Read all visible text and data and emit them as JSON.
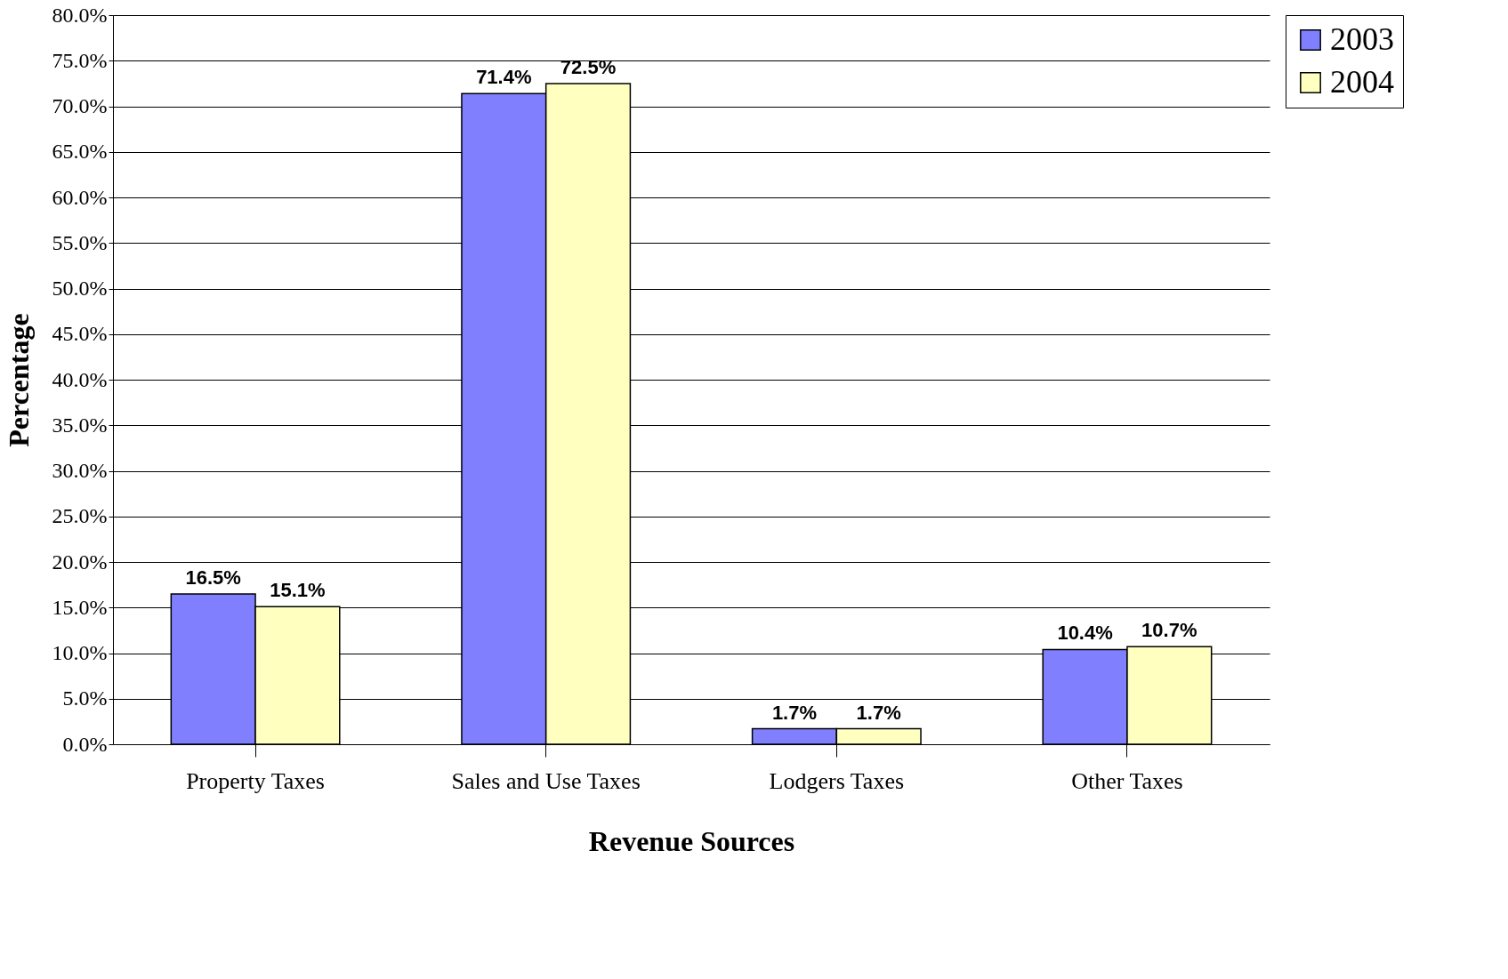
{
  "chart_data": {
    "type": "bar",
    "xlabel": "Revenue Sources",
    "ylabel": "Percentage",
    "categories": [
      "Property Taxes",
      "Sales and Use Taxes",
      "Lodgers Taxes",
      "Other Taxes"
    ],
    "series": [
      {
        "name": "2003",
        "color": "#8080ff",
        "values": [
          16.5,
          71.4,
          1.7,
          10.4
        ],
        "value_labels": [
          "16.5%",
          "71.4%",
          "1.7%",
          "10.4%"
        ]
      },
      {
        "name": "2004",
        "color": "#ffffc0",
        "values": [
          15.1,
          72.5,
          1.7,
          10.7
        ],
        "value_labels": [
          "15.1%",
          "72.5%",
          "1.7%",
          "10.7%"
        ]
      }
    ],
    "ylim": [
      0,
      80
    ],
    "yticks": [
      {
        "value": 0,
        "label": "0.0%"
      },
      {
        "value": 5,
        "label": "5.0%"
      },
      {
        "value": 10,
        "label": "10.0%"
      },
      {
        "value": 15,
        "label": "15.0%"
      },
      {
        "value": 20,
        "label": "20.0%"
      },
      {
        "value": 25,
        "label": "25.0%"
      },
      {
        "value": 30,
        "label": "30.0%"
      },
      {
        "value": 35,
        "label": "35.0%"
      },
      {
        "value": 40,
        "label": "40.0%"
      },
      {
        "value": 45,
        "label": "45.0%"
      },
      {
        "value": 50,
        "label": "50.0%"
      },
      {
        "value": 55,
        "label": "55.0%"
      },
      {
        "value": 60,
        "label": "60.0%"
      },
      {
        "value": 65,
        "label": "65.0%"
      },
      {
        "value": 70,
        "label": "70.0%"
      },
      {
        "value": 75,
        "label": "75.0%"
      },
      {
        "value": 80,
        "label": "80.0%"
      }
    ],
    "grid": true,
    "legend": "right"
  }
}
